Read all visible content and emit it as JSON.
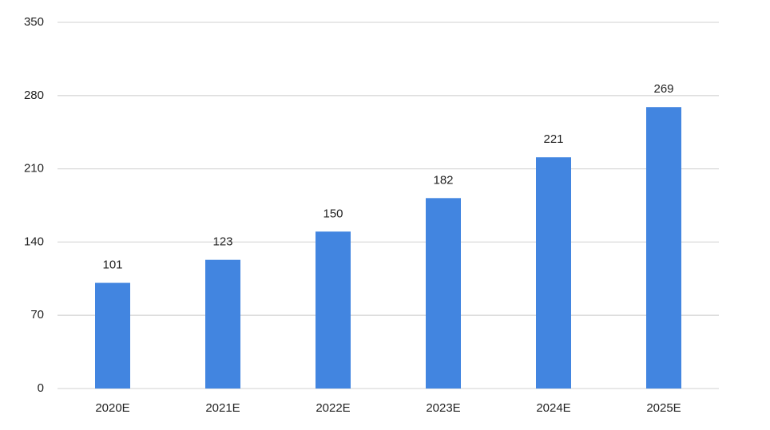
{
  "chart_data": {
    "type": "bar",
    "categories": [
      "2020E",
      "2021E",
      "2022E",
      "2023E",
      "2024E",
      "2025E"
    ],
    "values": [
      101,
      123,
      150,
      182,
      221,
      269
    ],
    "color": "#4285e0",
    "ylim": [
      0,
      350
    ],
    "yticks": [
      0,
      70,
      140,
      210,
      280,
      350
    ],
    "grid": true
  }
}
